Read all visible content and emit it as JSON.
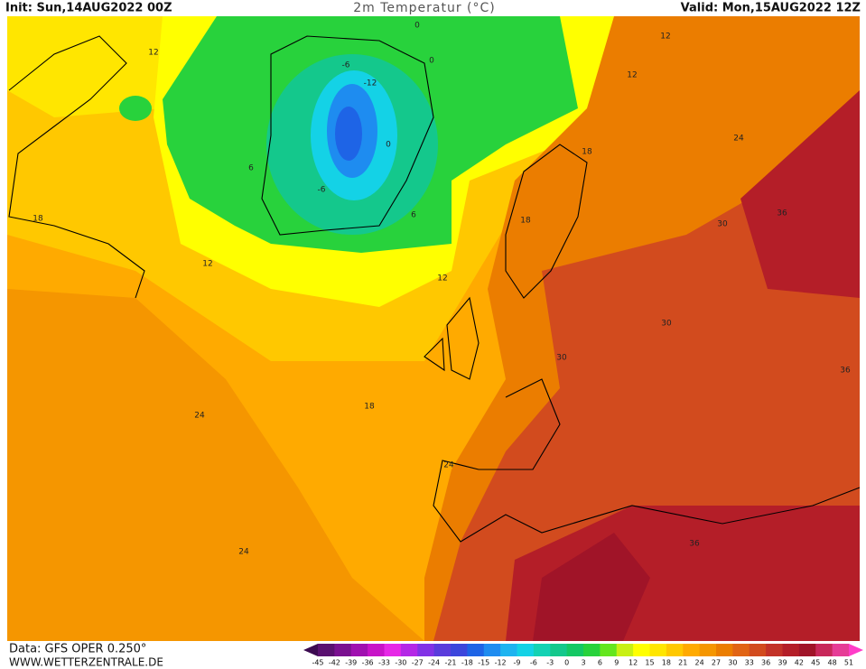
{
  "header": {
    "init": "Init: Sun,14AUG2022 00Z",
    "title": "2m Temperatur (°C)",
    "valid": "Valid: Mon,15AUG2022 12Z"
  },
  "footer": {
    "data": "Data: GFS OPER 0.250°",
    "site": "WWW.WETTERZENTRALE.DE"
  },
  "colorbar": {
    "labels": [
      -45,
      -42,
      -39,
      -36,
      -33,
      -30,
      -27,
      -24,
      -21,
      -18,
      -15,
      -12,
      -9,
      -6,
      -3,
      0,
      3,
      6,
      9,
      12,
      15,
      18,
      21,
      24,
      27,
      30,
      33,
      36,
      39,
      42,
      45,
      48,
      51
    ],
    "colors": [
      "#5a1070",
      "#7a1090",
      "#a010b0",
      "#c814c8",
      "#e628e6",
      "#b428e6",
      "#8232e6",
      "#5a3cdc",
      "#3c46dc",
      "#1e64e6",
      "#1e8cf0",
      "#1eb4f0",
      "#14d2e6",
      "#14d2b4",
      "#14c88c",
      "#14c864",
      "#28d23c",
      "#64e61e",
      "#c8f014",
      "#ffff00",
      "#ffe600",
      "#ffc800",
      "#ffaa00",
      "#f59600",
      "#eb7d00",
      "#e16414",
      "#d24b1e",
      "#c33228",
      "#b41e28",
      "#a01428",
      "#c8285a",
      "#e63c96"
    ],
    "low_color": "#3c0a50",
    "high_color": "#ff3cc8"
  },
  "contour_labels": [
    "12",
    "12",
    "12",
    "-6",
    "-12",
    "0",
    "0",
    "0",
    "6",
    "-6",
    "6",
    "18",
    "12",
    "12",
    "18",
    "18",
    "24",
    "30",
    "36",
    "30",
    "30",
    "36",
    "18",
    "24",
    "24",
    "24",
    "36"
  ]
}
